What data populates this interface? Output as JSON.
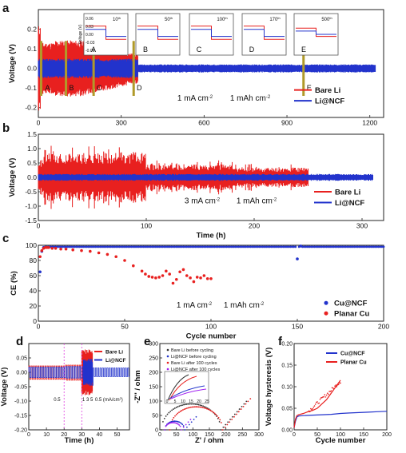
{
  "chart_data": [
    {
      "panel": "a",
      "type": "line",
      "xlabel": "",
      "ylabel": "Voltage (V)",
      "xlim": [
        0,
        1250
      ],
      "ylim": [
        -0.25,
        0.3
      ],
      "xticks": [
        0,
        300,
        600,
        900,
        1200
      ],
      "yticks": [
        -0.2,
        -0.1,
        0.0,
        0.1,
        0.2
      ],
      "annotation": [
        "1 mA cm",
        "1 mAh cm"
      ],
      "series": [
        {
          "name": "Bare Li",
          "color": "#e8201f",
          "x_range": [
            0,
            360
          ],
          "amplitude": [
            0.12,
            0.15,
            0.12,
            0.08,
            0.06
          ]
        },
        {
          "name": "Li@NCF",
          "color": "#2233cc",
          "x_range": [
            0,
            1220
          ],
          "amplitude": [
            0.05,
            0.04,
            0.018
          ]
        }
      ],
      "markers": [
        {
          "label": "A",
          "x": 10
        },
        {
          "label": "B",
          "x": 100
        },
        {
          "label": "C",
          "x": 200
        },
        {
          "label": "D",
          "x": 345
        },
        {
          "label": "E",
          "x": 960
        }
      ],
      "insets": [
        {
          "cycle": "10",
          "superscript": "th",
          "tag": "A",
          "ylabel": "Voltage (V)",
          "yticks": [
            "0.06",
            "0.03",
            "0.00",
            "-0.03",
            "-0.06"
          ]
        },
        {
          "cycle": "50",
          "superscript": "th",
          "tag": "B"
        },
        {
          "cycle": "100",
          "superscript": "th",
          "tag": "C"
        },
        {
          "cycle": "170",
          "superscript": "th",
          "tag": "D"
        },
        {
          "cycle": "500",
          "superscript": "th",
          "tag": "E"
        }
      ]
    },
    {
      "panel": "b",
      "type": "line",
      "xlabel": "Time (h)",
      "ylabel": "Voltage (V)",
      "xlim": [
        0,
        320
      ],
      "ylim": [
        -1.5,
        1.5
      ],
      "xticks": [
        0,
        100,
        200,
        300
      ],
      "yticks": [
        -1.5,
        -1.0,
        -0.5,
        0.0,
        0.5,
        1.0,
        1.5
      ],
      "annotation": [
        "3 mA cm",
        "1 mAh cm"
      ],
      "series": [
        {
          "name": "Bare Li",
          "color": "#e8201f",
          "x_range": [
            0,
            250
          ],
          "amplitude": [
            0.95,
            0.35
          ]
        },
        {
          "name": "Li@NCF",
          "color": "#2233cc",
          "x_range": [
            0,
            310
          ],
          "amplitude": [
            0.1
          ]
        }
      ]
    },
    {
      "panel": "c",
      "type": "scatter",
      "xlabel": "Cycle number",
      "ylabel": "CE (%)",
      "xlim": [
        0,
        200
      ],
      "ylim": [
        0,
        100
      ],
      "xticks": [
        0,
        50,
        100,
        150,
        200
      ],
      "yticks": [
        0,
        20,
        40,
        60,
        80,
        100
      ],
      "annotation": [
        "1 mA cm",
        "1 mAh cm"
      ],
      "series": [
        {
          "name": "Cu@NCF",
          "color": "#2233cc",
          "x": [
            1,
            2,
            3,
            150,
            152
          ],
          "y": [
            65,
            92,
            97,
            82,
            99
          ],
          "baseline": 98
        },
        {
          "name": "Planar Cu",
          "color": "#e8201f",
          "x": [
            1,
            2,
            3,
            4,
            5,
            6,
            8,
            10,
            13,
            16,
            20,
            25,
            30,
            35,
            40,
            45,
            50,
            55,
            60,
            62,
            64,
            66,
            68,
            70,
            72,
            74,
            76,
            78,
            80,
            82,
            84,
            86,
            88,
            90,
            92,
            94,
            96,
            98,
            100
          ],
          "y": [
            85,
            93,
            96,
            97,
            97,
            97,
            96,
            96,
            95,
            95,
            94,
            93,
            92,
            90,
            88,
            85,
            80,
            73,
            66,
            62,
            59,
            58,
            57,
            58,
            60,
            66,
            62,
            50,
            55,
            65,
            68,
            60,
            57,
            52,
            58,
            57,
            60,
            56,
            56
          ]
        }
      ]
    },
    {
      "panel": "d",
      "type": "line",
      "xlabel": "Time (h)",
      "ylabel": "Voltage (V)",
      "xlim": [
        0,
        57
      ],
      "ylim": [
        -0.2,
        0.1
      ],
      "xticks": [
        0,
        10,
        20,
        30,
        40,
        50
      ],
      "yticks": [
        -0.2,
        -0.15,
        -0.1,
        -0.05,
        0.0,
        0.05
      ],
      "rate_labels": [
        "0.5",
        "1",
        "3",
        "5",
        "0.5 (mA/cm",
        "2",
        ")"
      ],
      "series": [
        {
          "name": "Bare Li",
          "color": "#e8201f"
        },
        {
          "name": "Li@NCF",
          "color": "#2233cc"
        }
      ]
    },
    {
      "panel": "e",
      "type": "scatter",
      "xlabel": "Z' / ohm",
      "ylabel": "-Z'' / ohm",
      "xlim": [
        0,
        300
      ],
      "ylim": [
        0,
        300
      ],
      "xticks": [
        0,
        50,
        100,
        150,
        200,
        250,
        300
      ],
      "yticks": [
        0,
        50,
        100,
        150,
        200,
        250,
        300
      ],
      "inset_xticks": [
        "0",
        "5",
        "10",
        "15",
        "20",
        "25"
      ],
      "series": [
        {
          "name": "Bare Li before cycling",
          "color": "#333333"
        },
        {
          "name": "Li@NCF before cycling",
          "color": "#2233cc"
        },
        {
          "name": "Bare Li after 100 cycles",
          "color": "#e8201f"
        },
        {
          "name": "Li@NCF after 100 cycles",
          "color": "#a020f0"
        }
      ]
    },
    {
      "panel": "f",
      "type": "line",
      "xlabel": "Cycle number",
      "ylabel": "Voltage hysteresis (V)",
      "xlim": [
        0,
        200
      ],
      "ylim": [
        0,
        0.2
      ],
      "xticks": [
        0,
        50,
        100,
        150,
        200
      ],
      "yticks": [
        0,
        0.05,
        0.1,
        0.15,
        0.2
      ],
      "ytick_labels": [
        "0.00",
        "0.05",
        "0.10",
        "0.15",
        "0.20"
      ],
      "series": [
        {
          "name": "Cu@NCF",
          "color": "#2233cc",
          "x": [
            0,
            3,
            6,
            10,
            20,
            40,
            60,
            80,
            100,
            120,
            140,
            160,
            180,
            200
          ],
          "y": [
            0.005,
            0.02,
            0.03,
            0.032,
            0.033,
            0.034,
            0.035,
            0.036,
            0.038,
            0.039,
            0.04,
            0.041,
            0.042,
            0.043
          ]
        },
        {
          "name": "Planar Cu",
          "color": "#e8201f",
          "x": [
            0,
            3,
            6,
            10,
            20,
            30,
            40,
            50,
            60,
            70,
            80,
            90,
            100
          ],
          "y": [
            0.005,
            0.025,
            0.033,
            0.035,
            0.038,
            0.042,
            0.045,
            0.05,
            0.06,
            0.07,
            0.085,
            0.1,
            0.115
          ]
        }
      ]
    }
  ],
  "panel_labels": [
    "a",
    "b",
    "c",
    "d",
    "e",
    "f"
  ]
}
